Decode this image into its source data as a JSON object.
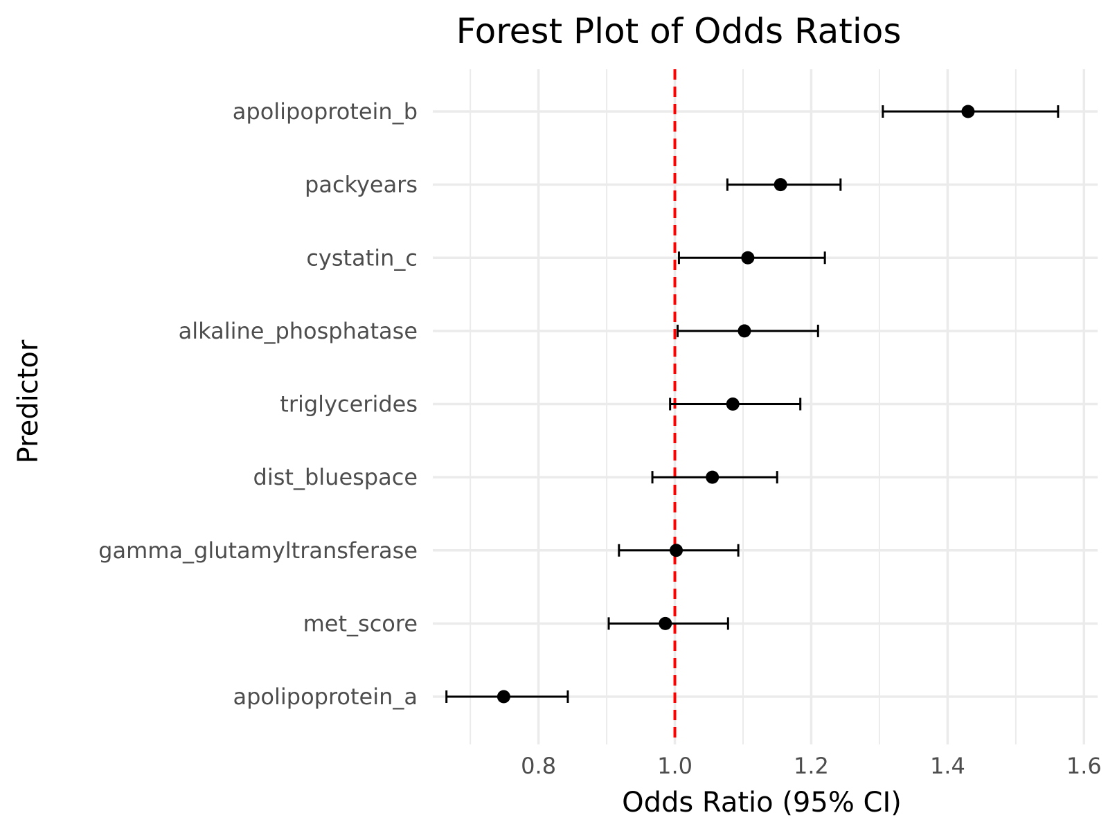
{
  "chart_data": {
    "type": "scatter",
    "subtype": "forest-plot",
    "title": "Forest Plot of Odds Ratios",
    "xlabel": "Odds Ratio (95% CI)",
    "ylabel": "Predictor",
    "xlim": [
      0.645,
      1.62
    ],
    "x_ticks": [
      0.8,
      1.0,
      1.2,
      1.4,
      1.6
    ],
    "x_tick_labels": [
      "0.8",
      "1.0",
      "1.2",
      "1.4",
      "1.6"
    ],
    "grid": true,
    "reference_line": {
      "x": 1.0,
      "color": "#ff0000",
      "style": "dashed"
    },
    "colors": {
      "points": "#000000",
      "error_bars": "#000000",
      "grid": "#ebebeb"
    },
    "categories": [
      "apolipoprotein_b",
      "packyears",
      "cystatin_c",
      "alkaline_phosphatase",
      "triglycerides",
      "dist_bluespace",
      "gamma_glutamyltransferase",
      "met_score",
      "apolipoprotein_a"
    ],
    "series": [
      {
        "estimate": [
          1.43,
          1.155,
          1.107,
          1.102,
          1.085,
          1.055,
          1.002,
          0.986,
          0.749
        ],
        "ci_lower": [
          1.305,
          1.077,
          1.006,
          1.004,
          0.993,
          0.967,
          0.918,
          0.903,
          0.665
        ],
        "ci_upper": [
          1.562,
          1.243,
          1.22,
          1.21,
          1.184,
          1.15,
          1.093,
          1.078,
          0.843
        ]
      }
    ]
  }
}
